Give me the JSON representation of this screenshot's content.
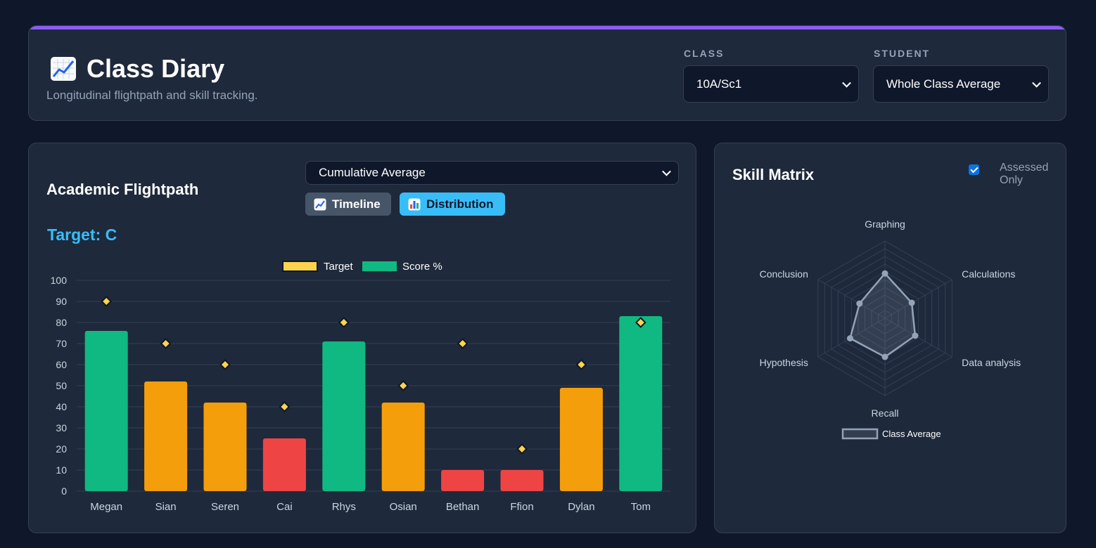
{
  "header": {
    "title": "Class Diary",
    "subtitle": "Longitudinal flightpath and skill tracking.",
    "class_label": "CLASS",
    "class_value": "10A/Sc1",
    "student_label": "STUDENT",
    "student_value": "Whole Class Average",
    "accent_color": "#8b5cf6"
  },
  "flightpath": {
    "title": "Academic Flightpath",
    "mode_value": "Cumulative Average",
    "timeline_label": "Timeline",
    "distribution_label": "Distribution",
    "target_text": "Target: C"
  },
  "chart_data": [
    {
      "type": "bar",
      "categories": [
        "Megan",
        "Sian",
        "Seren",
        "Cai",
        "Rhys",
        "Osian",
        "Bethan",
        "Ffion",
        "Dylan",
        "Tom"
      ],
      "series": [
        {
          "name": "Score %",
          "values": [
            76,
            52,
            42,
            25,
            71,
            42,
            10,
            10,
            49,
            83
          ]
        },
        {
          "name": "Target",
          "values": [
            90,
            70,
            60,
            40,
            80,
            50,
            70,
            20,
            60,
            80
          ]
        }
      ],
      "bar_colors": [
        "#10b981",
        "#f59e0b",
        "#f59e0b",
        "#ef4444",
        "#10b981",
        "#f59e0b",
        "#ef4444",
        "#ef4444",
        "#f59e0b",
        "#10b981"
      ],
      "target_color": "#fcd34d",
      "legend": [
        "Target",
        "Score %"
      ],
      "ylim": [
        0,
        100
      ],
      "yticks": [
        0,
        10,
        20,
        30,
        40,
        50,
        60,
        70,
        80,
        90,
        100
      ],
      "grid": true,
      "legend_position": "top"
    },
    {
      "type": "radar",
      "title": "Skill Matrix",
      "axes": [
        "Graphing",
        "Calculations",
        "Data analysis",
        "Recall",
        "Hypothesis",
        "Conclusion"
      ],
      "series": [
        {
          "name": "Class Average",
          "values": [
            58,
            40,
            45,
            50,
            52,
            38
          ]
        }
      ],
      "rmax": 100,
      "rings": 10,
      "line_color": "#94a3b8",
      "legend_position": "bottom"
    }
  ],
  "skills": {
    "title": "Skill Matrix",
    "assessed_only_label": "Assessed Only",
    "assessed_only_checked": true
  }
}
